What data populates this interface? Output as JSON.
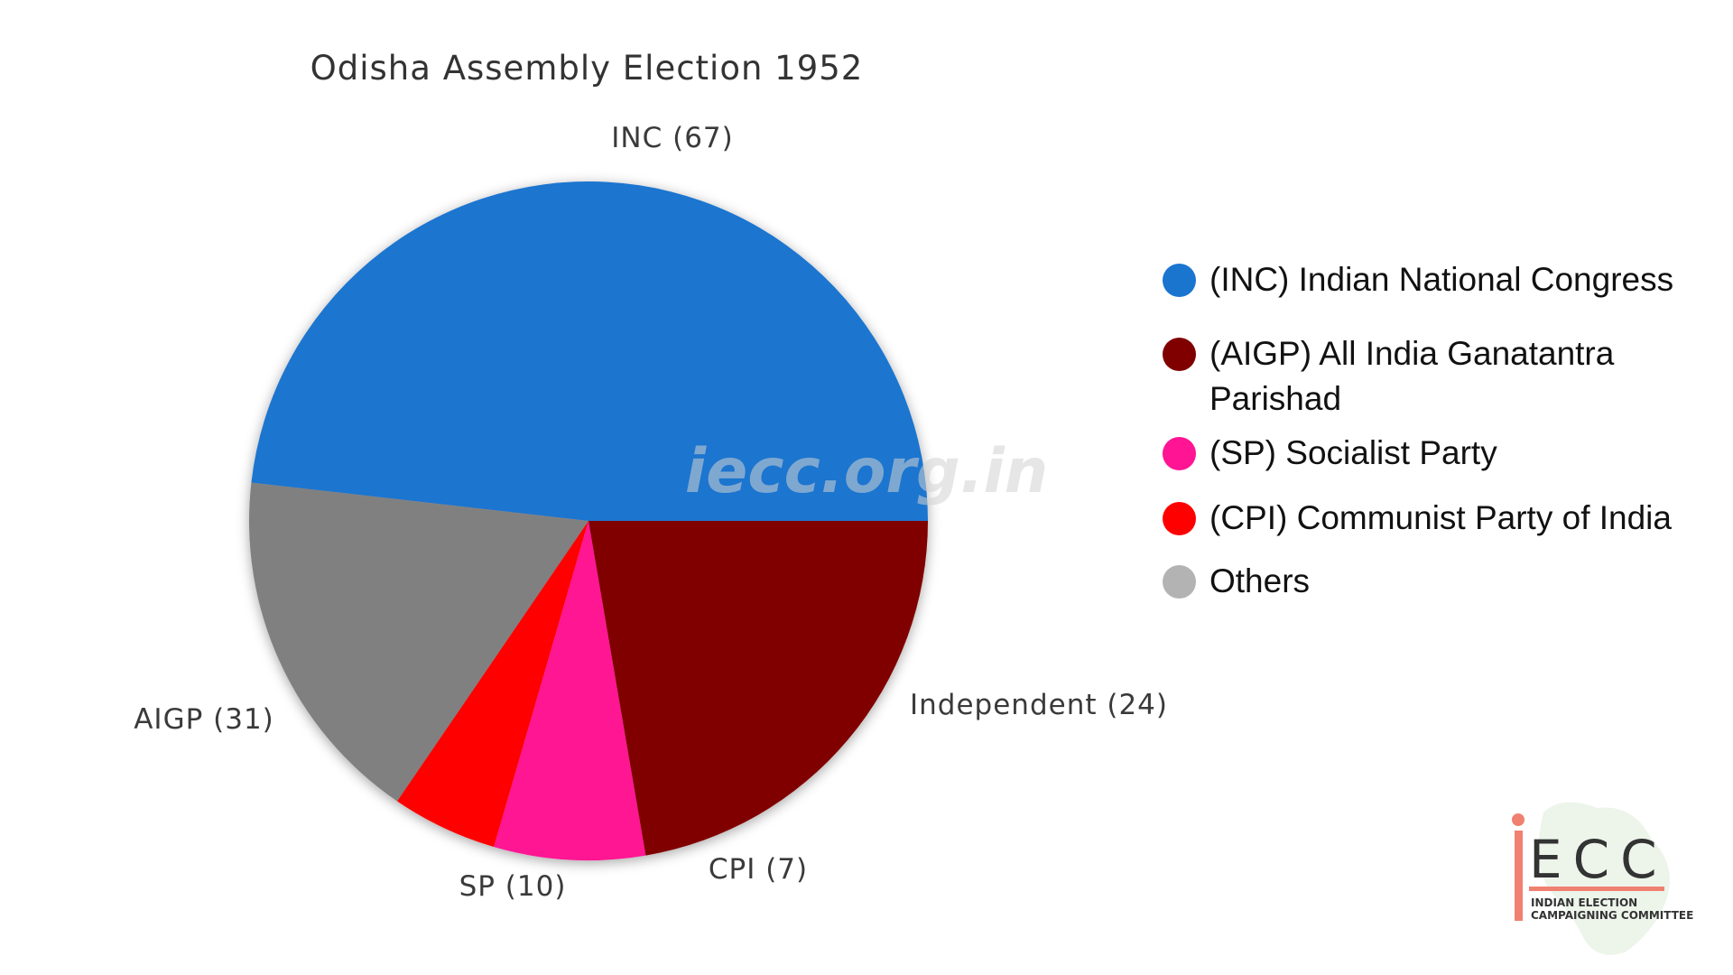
{
  "chart_data": {
    "type": "pie",
    "title": "Odisha Assembly Election 1952",
    "slices": [
      {
        "category": "INC",
        "value": 67,
        "label": "INC (67)",
        "color": "#1a75cf"
      },
      {
        "category": "Independent",
        "value": 24,
        "label": "Independent (24)",
        "color": "#808080"
      },
      {
        "category": "CPI",
        "value": 7,
        "label": "CPI (7)",
        "color": "#ff0000"
      },
      {
        "category": "SP",
        "value": 10,
        "label": "SP (10)",
        "color": "#ff1493"
      },
      {
        "category": "AIGP",
        "value": 31,
        "label": "AIGP (31)",
        "color": "#800000"
      }
    ],
    "legend": [
      {
        "label": "(INC) Indian National Congress",
        "color": "#1a75cf"
      },
      {
        "label": "(AIGP) All India Ganatantra Parishad",
        "color": "#800000"
      },
      {
        "label": "(SP) Socialist Party",
        "color": "#ff1493"
      },
      {
        "label": "(CPI) Communist Party of India",
        "color": "#ff0000"
      },
      {
        "label": "Others",
        "color": "#b3b3b3"
      }
    ],
    "legend_position": "right"
  },
  "watermark": "iecc.org.in",
  "logo": {
    "letters": "ECC",
    "line1": "INDIAN ELECTION",
    "line2": "CAMPAIGNING COMMITTEE",
    "accent": "#f08070"
  }
}
